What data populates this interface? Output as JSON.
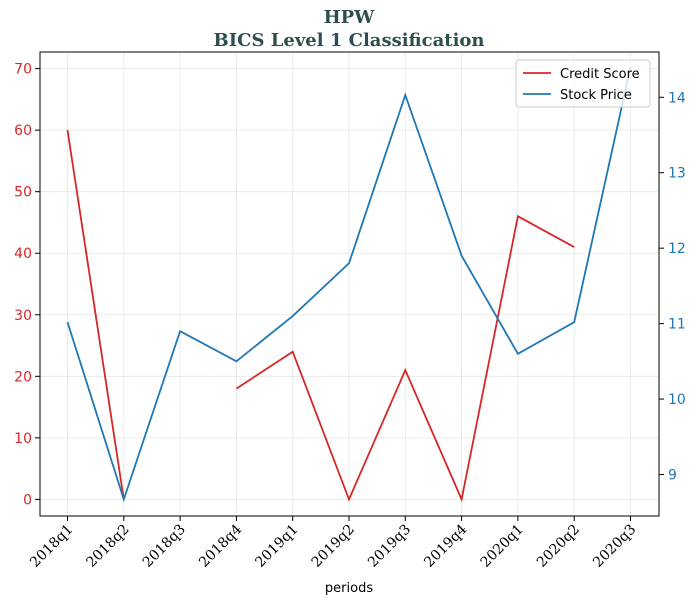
{
  "chart_data": {
    "type": "line",
    "title": "HPW",
    "subtitle": "BICS Level 1 Classification",
    "xlabel": "periods",
    "categories": [
      "2018q1",
      "2018q2",
      "2018q3",
      "2018q4",
      "2019q1",
      "2019q2",
      "2019q3",
      "2019q4",
      "2020q1",
      "2020q2",
      "2020q3"
    ],
    "series": [
      {
        "name": "Credit Score",
        "axis": "left",
        "color": "#d62728",
        "values": [
          60,
          0,
          null,
          18,
          24,
          0,
          21,
          0,
          46,
          41,
          null
        ]
      },
      {
        "name": "Stock Price",
        "axis": "right",
        "color": "#1f77b4",
        "values": [
          11.02,
          8.67,
          10.9,
          10.5,
          11.1,
          11.8,
          14.03,
          11.9,
          10.6,
          11.02,
          14.4
        ]
      }
    ],
    "left_axis": {
      "ylim": [
        -2.7,
        72.7
      ],
      "ticks": [
        0,
        10,
        20,
        30,
        40,
        50,
        60,
        70
      ],
      "color": "#d62728"
    },
    "right_axis": {
      "ylim": [
        8.45,
        14.6
      ],
      "ticks": [
        9,
        10,
        11,
        12,
        13,
        14
      ],
      "color": "#1f77b4"
    },
    "grid": true,
    "legend_position": "top-right"
  }
}
